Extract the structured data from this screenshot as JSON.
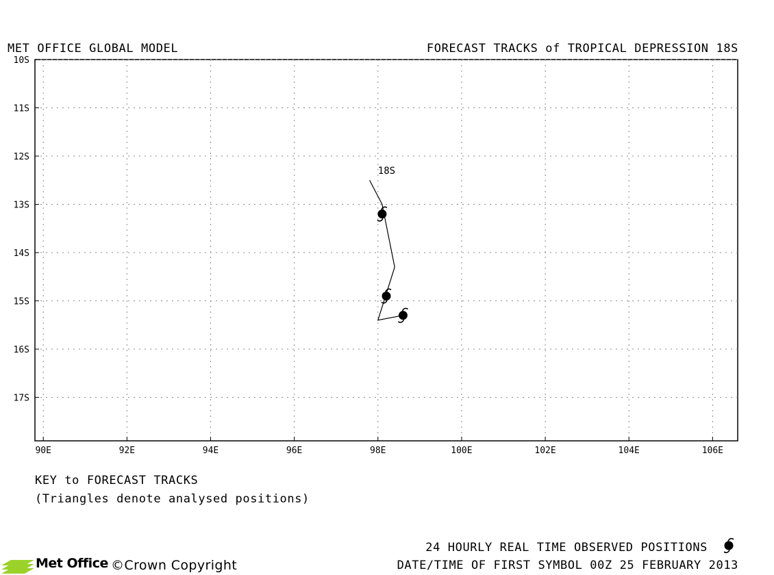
{
  "header": {
    "left": "MET OFFICE GLOBAL MODEL",
    "right": "FORECAST TRACKS of TROPICAL DEPRESSION 18S"
  },
  "map": {
    "lon_range": [
      89.8,
      106.6
    ],
    "lat_range": [
      -10,
      -17.9
    ],
    "lon_ticks": [
      {
        "value": 90,
        "label": "90E"
      },
      {
        "value": 92,
        "label": "92E"
      },
      {
        "value": 94,
        "label": "94E"
      },
      {
        "value": 96,
        "label": "96E"
      },
      {
        "value": 98,
        "label": "98E"
      },
      {
        "value": 100,
        "label": "100E"
      },
      {
        "value": 102,
        "label": "102E"
      },
      {
        "value": 104,
        "label": "104E"
      },
      {
        "value": 106,
        "label": "106E"
      }
    ],
    "lat_ticks": [
      {
        "value": -10,
        "label": "10S"
      },
      {
        "value": -11,
        "label": "11S"
      },
      {
        "value": -12,
        "label": "12S"
      },
      {
        "value": -13,
        "label": "13S"
      },
      {
        "value": -14,
        "label": "14S"
      },
      {
        "value": -15,
        "label": "15S"
      },
      {
        "value": -16,
        "label": "16S"
      },
      {
        "value": -17,
        "label": "17S"
      }
    ],
    "grid": "dotted",
    "storm_label": "18S",
    "track": [
      {
        "lon": 98.6,
        "lat": -15.3
      },
      {
        "lon": 98.0,
        "lat": -15.4
      },
      {
        "lon": 98.4,
        "lat": -14.3
      },
      {
        "lon": 98.1,
        "lat": -13.0
      },
      {
        "lon": 97.8,
        "lat": -12.5
      }
    ],
    "observed_positions": [
      {
        "lon": 98.6,
        "lat": -15.3
      },
      {
        "lon": 98.2,
        "lat": -14.9
      },
      {
        "lon": 98.1,
        "lat": -13.2
      }
    ],
    "label_position": {
      "lon": 98.0,
      "lat": -12.3
    }
  },
  "key": {
    "title": "KEY to FORECAST TRACKS",
    "note": "(Triangles denote analysed positions)"
  },
  "footer": {
    "observed_label": "24 HOURLY REAL TIME OBSERVED POSITIONS",
    "first_symbol": "DATE/TIME OF FIRST SYMBOL 00Z 25 FEBRUARY 2013",
    "logo_text": "Met Office",
    "copyright": "©Crown Copyright"
  },
  "colors": {
    "logo_green": "#9bd22a",
    "line": "#000000"
  },
  "icons": {
    "storm": "tropical-cyclone-symbol",
    "logo": "met-office-logo"
  }
}
